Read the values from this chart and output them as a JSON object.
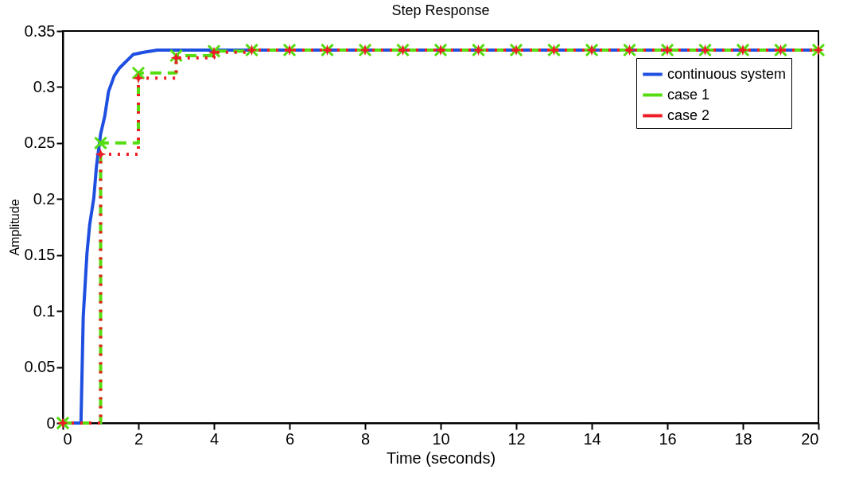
{
  "chart_data": {
    "type": "line",
    "title": "Step Response",
    "xlabel": "Time (seconds)",
    "ylabel": "Amplitude",
    "xlim": [
      0,
      20
    ],
    "xticks": [
      0,
      2,
      4,
      6,
      8,
      10,
      12,
      14,
      16,
      18,
      20
    ],
    "ylim": [
      0,
      0.35
    ],
    "yticks": [
      0,
      0.05,
      0.1,
      0.15,
      0.2,
      0.25,
      0.3,
      0.35
    ],
    "grid": false,
    "legend": "top right",
    "series": [
      {
        "name": "continuous system",
        "color": "#1f4fe0",
        "line_style": "solid",
        "marker": "none",
        "x": [
          0,
          0.48,
          0.54,
          0.64,
          0.71,
          0.82,
          0.89,
          1.0,
          1.11,
          1.21,
          1.36,
          1.5,
          1.86,
          2.14,
          2.5,
          20
        ],
        "values": [
          0,
          0,
          0.095,
          0.152,
          0.177,
          0.201,
          0.229,
          0.258,
          0.274,
          0.296,
          0.31,
          0.317,
          0.329,
          0.331,
          0.333,
          0.333
        ]
      },
      {
        "name": "case 1",
        "type": "step",
        "color": "#55dd11",
        "line_style": "dashed",
        "marker": "cross",
        "x": [
          0,
          1,
          2,
          3,
          4,
          5,
          6,
          7,
          8,
          9,
          10,
          11,
          12,
          13,
          14,
          15,
          16,
          17,
          18,
          19,
          20
        ],
        "values": [
          0,
          0.25,
          0.3125,
          0.328,
          0.332,
          0.333,
          0.333,
          0.333,
          0.333,
          0.333,
          0.333,
          0.333,
          0.333,
          0.333,
          0.333,
          0.333,
          0.333,
          0.333,
          0.333,
          0.333,
          0.333
        ]
      },
      {
        "name": "case 2",
        "type": "step",
        "color": "#ee1c25",
        "line_style": "dotted",
        "marker": "star",
        "x": [
          0,
          1,
          2,
          3,
          4,
          5,
          6,
          7,
          8,
          9,
          10,
          11,
          12,
          13,
          14,
          15,
          16,
          17,
          18,
          19,
          20
        ],
        "values": [
          0,
          0.24,
          0.308,
          0.326,
          0.331,
          0.333,
          0.333,
          0.333,
          0.333,
          0.333,
          0.333,
          0.333,
          0.333,
          0.333,
          0.333,
          0.333,
          0.333,
          0.333,
          0.333,
          0.333,
          0.333
        ]
      }
    ]
  }
}
